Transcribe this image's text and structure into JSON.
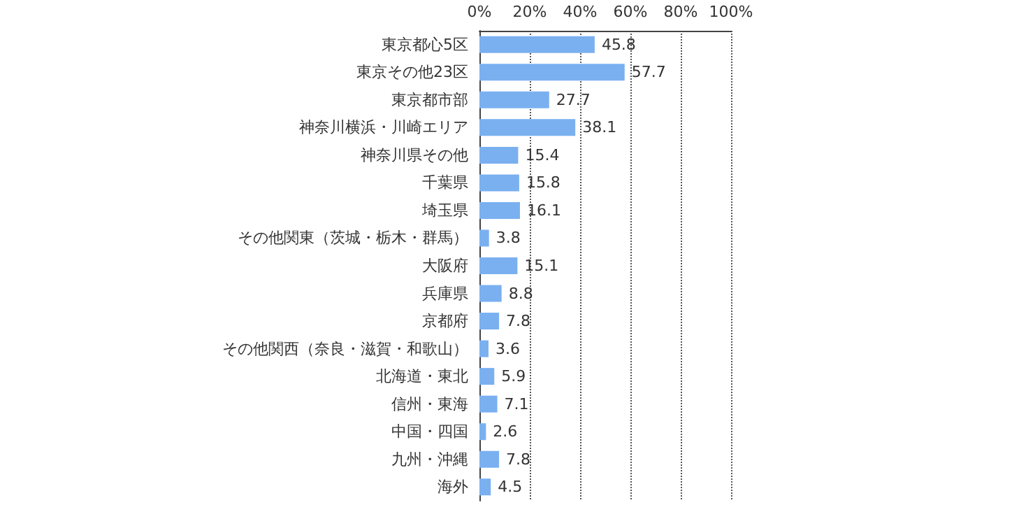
{
  "chart_data": {
    "type": "bar",
    "orientation": "horizontal",
    "categories": [
      "東京都心5区",
      "東京その他23区",
      "東京都市部",
      "神奈川横浜・川崎エリア",
      "神奈川県その他",
      "千葉県",
      "埼玉県",
      "その他関東（茨城・栃木・群馬）",
      "大阪府",
      "兵庫県",
      "京都府",
      "その他関西（奈良・滋賀・和歌山）",
      "北海道・東北",
      "信州・東海",
      "中国・四国",
      "九州・沖縄",
      "海外"
    ],
    "values": [
      45.8,
      57.7,
      27.7,
      38.1,
      15.4,
      15.8,
      16.1,
      3.8,
      15.1,
      8.8,
      7.8,
      3.6,
      5.9,
      7.1,
      2.6,
      7.8,
      4.5
    ],
    "color": "#7ab0f0",
    "xlim": [
      0,
      100
    ],
    "xticks": [
      {
        "value": 0,
        "label": "0%"
      },
      {
        "value": 20,
        "label": "20%"
      },
      {
        "value": 40,
        "label": "40%"
      },
      {
        "value": 60,
        "label": "60%"
      },
      {
        "value": 80,
        "label": "80%"
      },
      {
        "value": 100,
        "label": "100%"
      }
    ],
    "grid": "x",
    "data_labels": true
  }
}
